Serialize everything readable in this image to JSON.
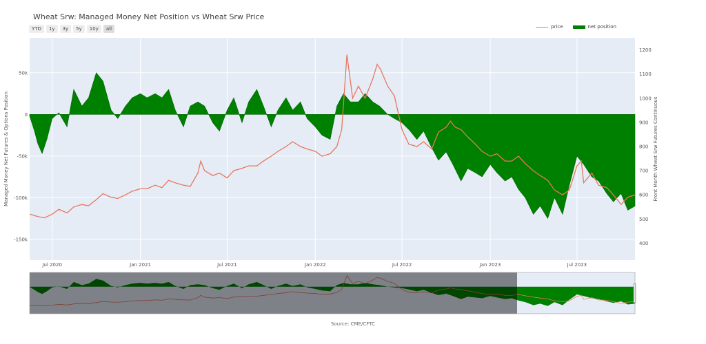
{
  "chart_data": {
    "type": "area",
    "title": "Wheat Srw: Managed Money Net Position vs Wheat Srw Price",
    "range_buttons": [
      "YTD",
      "1y",
      "3y",
      "5y",
      "10y",
      "all"
    ],
    "ylabel": "Managed Money Net Futures & Options Position",
    "y2label": "Front Month Wheat Srw Futures Continuous",
    "source": "Source: CME/CFTC",
    "legend": {
      "placement": "top-right"
    },
    "grid": true,
    "x_ticks": [
      "Jul 2020",
      "Jan 2021",
      "Jul 2021",
      "Jan 2022",
      "Jul 2022",
      "Jan 2023",
      "Jul 2023"
    ],
    "y_ticks": [
      "50k",
      "0",
      "-50k",
      "-100k",
      "-150k"
    ],
    "y2_ticks": [
      "1200",
      "1100",
      "1000",
      "900",
      "800",
      "700",
      "600",
      "500",
      "400"
    ],
    "ylim": [
      -175000,
      92000
    ],
    "y2lim": [
      330,
      1250
    ],
    "xlim": [
      "2020-05-15",
      "2023-10-30"
    ],
    "colors": {
      "price": "#e8765e",
      "net_position": "#008000",
      "plot_bg": "#e5ecf6",
      "grid": "#ffffff"
    },
    "series": [
      {
        "name": "price",
        "axis": "y2",
        "x": [
          "2020-05-15",
          "2020-06-01",
          "2020-06-15",
          "2020-07-01",
          "2020-07-15",
          "2020-08-01",
          "2020-08-15",
          "2020-09-01",
          "2020-09-15",
          "2020-10-01",
          "2020-10-15",
          "2020-11-01",
          "2020-11-15",
          "2020-12-01",
          "2020-12-15",
          "2021-01-01",
          "2021-01-15",
          "2021-02-01",
          "2021-02-15",
          "2021-03-01",
          "2021-03-15",
          "2021-04-01",
          "2021-04-15",
          "2021-05-01",
          "2021-05-07",
          "2021-05-15",
          "2021-06-01",
          "2021-06-15",
          "2021-07-01",
          "2021-07-15",
          "2021-08-01",
          "2021-08-15",
          "2021-09-01",
          "2021-09-15",
          "2021-10-01",
          "2021-10-15",
          "2021-11-01",
          "2021-11-15",
          "2021-12-01",
          "2021-12-15",
          "2022-01-01",
          "2022-01-15",
          "2022-02-01",
          "2022-02-15",
          "2022-02-25",
          "2022-03-08",
          "2022-03-20",
          "2022-04-01",
          "2022-04-15",
          "2022-05-01",
          "2022-05-10",
          "2022-05-17",
          "2022-06-01",
          "2022-06-15",
          "2022-07-01",
          "2022-07-15",
          "2022-08-01",
          "2022-08-15",
          "2022-09-01",
          "2022-09-15",
          "2022-10-01",
          "2022-10-10",
          "2022-10-20",
          "2022-11-01",
          "2022-11-15",
          "2022-12-01",
          "2022-12-15",
          "2023-01-01",
          "2023-01-15",
          "2023-02-01",
          "2023-02-15",
          "2023-03-01",
          "2023-03-15",
          "2023-04-01",
          "2023-04-15",
          "2023-05-01",
          "2023-05-15",
          "2023-06-01",
          "2023-06-15",
          "2023-07-01",
          "2023-07-10",
          "2023-07-15",
          "2023-08-01",
          "2023-08-15",
          "2023-09-01",
          "2023-09-15",
          "2023-10-01",
          "2023-10-15",
          "2023-10-30"
        ],
        "values": [
          520,
          510,
          505,
          520,
          540,
          525,
          550,
          560,
          555,
          580,
          605,
          590,
          585,
          600,
          615,
          625,
          625,
          640,
          630,
          660,
          650,
          640,
          635,
          690,
          740,
          700,
          680,
          690,
          670,
          700,
          710,
          720,
          720,
          740,
          760,
          780,
          800,
          820,
          800,
          790,
          780,
          760,
          770,
          800,
          870,
          1180,
          1000,
          1050,
          1000,
          1080,
          1140,
          1120,
          1050,
          1010,
          870,
          810,
          800,
          820,
          790,
          860,
          880,
          905,
          880,
          870,
          840,
          810,
          780,
          760,
          770,
          740,
          740,
          760,
          730,
          700,
          680,
          660,
          620,
          600,
          620,
          720,
          740,
          650,
          690,
          640,
          630,
          600,
          560,
          590,
          600
        ]
      },
      {
        "name": "net position",
        "axis": "y",
        "x": [
          "2020-05-15",
          "2020-05-25",
          "2020-06-01",
          "2020-06-10",
          "2020-06-20",
          "2020-07-01",
          "2020-07-15",
          "2020-08-01",
          "2020-08-15",
          "2020-09-01",
          "2020-09-15",
          "2020-10-01",
          "2020-10-15",
          "2020-11-01",
          "2020-11-15",
          "2020-12-01",
          "2020-12-15",
          "2021-01-01",
          "2021-01-15",
          "2021-02-01",
          "2021-02-15",
          "2021-03-01",
          "2021-03-15",
          "2021-04-01",
          "2021-04-15",
          "2021-05-01",
          "2021-05-15",
          "2021-06-01",
          "2021-06-15",
          "2021-07-01",
          "2021-07-15",
          "2021-08-01",
          "2021-08-15",
          "2021-09-01",
          "2021-09-15",
          "2021-10-01",
          "2021-10-15",
          "2021-11-01",
          "2021-11-15",
          "2021-12-01",
          "2021-12-15",
          "2022-01-01",
          "2022-01-15",
          "2022-02-01",
          "2022-02-15",
          "2022-03-01",
          "2022-03-15",
          "2022-04-01",
          "2022-04-15",
          "2022-05-01",
          "2022-05-15",
          "2022-06-01",
          "2022-06-15",
          "2022-07-01",
          "2022-07-15",
          "2022-08-01",
          "2022-08-15",
          "2022-09-01",
          "2022-09-15",
          "2022-10-01",
          "2022-10-15",
          "2022-11-01",
          "2022-11-15",
          "2022-12-01",
          "2022-12-15",
          "2023-01-01",
          "2023-01-15",
          "2023-02-01",
          "2023-02-15",
          "2023-03-01",
          "2023-03-15",
          "2023-04-01",
          "2023-04-15",
          "2023-05-01",
          "2023-05-15",
          "2023-06-01",
          "2023-06-15",
          "2023-07-01",
          "2023-07-15",
          "2023-08-01",
          "2023-08-15",
          "2023-09-01",
          "2023-09-15",
          "2023-10-01",
          "2023-10-15",
          "2023-10-30"
        ],
        "values": [
          -2000,
          -20000,
          -35000,
          -47000,
          -30000,
          -5000,
          2000,
          -15000,
          30000,
          10000,
          20000,
          50000,
          40000,
          5000,
          -5000,
          10000,
          20000,
          25000,
          20000,
          25000,
          20000,
          30000,
          5000,
          -15000,
          10000,
          15000,
          10000,
          -10000,
          -20000,
          5000,
          20000,
          -10000,
          15000,
          30000,
          10000,
          -15000,
          5000,
          20000,
          5000,
          15000,
          -5000,
          -15000,
          -25000,
          -30000,
          10000,
          25000,
          15000,
          15000,
          25000,
          15000,
          10000,
          0,
          -5000,
          -10000,
          -18000,
          -30000,
          -20000,
          -40000,
          -55000,
          -45000,
          -60000,
          -80000,
          -65000,
          -70000,
          -75000,
          -60000,
          -70000,
          -80000,
          -75000,
          -90000,
          -100000,
          -120000,
          -110000,
          -125000,
          -100000,
          -120000,
          -85000,
          -50000,
          -60000,
          -75000,
          -80000,
          -95000,
          -105000,
          -95000,
          -115000,
          -110000
        ]
      }
    ]
  }
}
